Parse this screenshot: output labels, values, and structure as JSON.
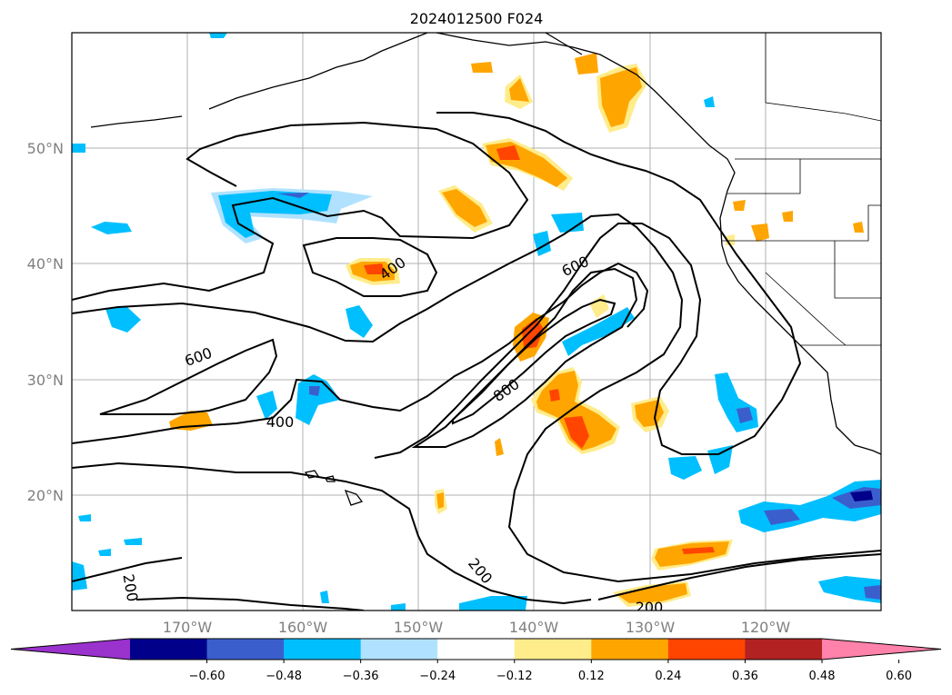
{
  "title": "2024012500 F024",
  "lat_labels": [
    "50°N",
    "40°N",
    "30°N",
    "20°N"
  ],
  "lon_labels": [
    "170°W",
    "160°W",
    "150°W",
    "140°W",
    "130°W",
    "120°W"
  ],
  "map_extent": {
    "lon": [
      -180,
      -110
    ],
    "lat": [
      10,
      60
    ]
  },
  "gridlines": true,
  "colorbar": {
    "ticks": [
      "−0.60",
      "−0.48",
      "−0.36",
      "−0.24",
      "−0.12",
      "0.12",
      "0.24",
      "0.36",
      "0.48",
      "0.60"
    ],
    "colors": [
      "#9a32cd",
      "#00008b",
      "#3a5fcd",
      "#00bfff",
      "#b0e2ff",
      "#ffffff",
      "#ffec8b",
      "#ffa500",
      "#ff4500",
      "#b22222",
      "#ff82ab"
    ]
  },
  "contour_labels": [
    "400",
    "600",
    "600",
    "400",
    "800",
    "200",
    "200",
    "200"
  ]
}
